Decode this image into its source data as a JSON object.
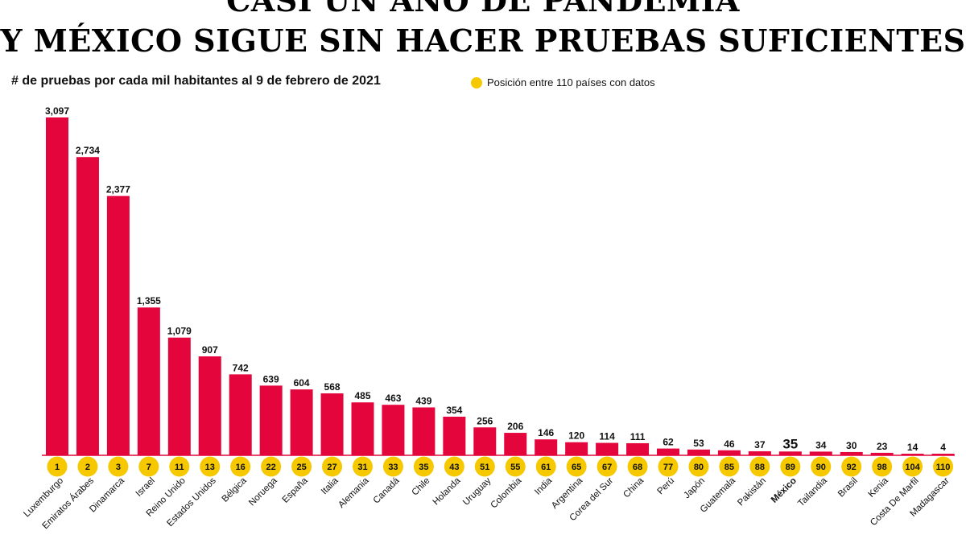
{
  "title": {
    "line1": "CASI UN AÑO DE PANDEMIA",
    "line2": "Y MÉXICO SIGUE SIN HACER PRUEBAS SUFICIENTES"
  },
  "subtitle": "# de pruebas por cada mil habitantes al 9 de febrero de 2021",
  "legend": {
    "label": "Posición entre 110 países con datos",
    "color": "#F5C800"
  },
  "colors": {
    "bar": "#E3053C",
    "badge": "#F5C800",
    "text": "#111111"
  },
  "chart_data": {
    "type": "bar",
    "title": "CASI UN AÑO DE PANDEMIA Y MÉXICO SIGUE SIN HACER PRUEBAS SUFICIENTES",
    "ylabel": "# de pruebas por cada mil habitantes al 9 de febrero de 2021",
    "ylim": [
      0,
      3097
    ],
    "highlight": "México",
    "categories": [
      "Luxemburgo",
      "Emiratos Árabes",
      "Dinamarca",
      "Israel",
      "Reino Unido",
      "Estados Unidos",
      "Bélgica",
      "Noruega",
      "España",
      "Italia",
      "Alemania",
      "Canadá",
      "Chile",
      "Holanda",
      "Uruguay",
      "Colombia",
      "India",
      "Argentina",
      "Corea del Sur",
      "China",
      "Perú",
      "Japón",
      "Guatemala",
      "Pakistán",
      "México",
      "Tailandia",
      "Brasil",
      "Kenia",
      "Costa De Marfil",
      "Madagascar"
    ],
    "values": [
      3097,
      2734,
      2377,
      1355,
      1079,
      907,
      742,
      639,
      604,
      568,
      485,
      463,
      439,
      354,
      256,
      206,
      146,
      120,
      114,
      111,
      62,
      53,
      46,
      37,
      35,
      34,
      30,
      23,
      14,
      4
    ],
    "value_labels": [
      "3,097",
      "2,734",
      "2,377",
      "1,355",
      "1,079",
      "907",
      "742",
      "639",
      "604",
      "568",
      "485",
      "463",
      "439",
      "354",
      "256",
      "206",
      "146",
      "120",
      "114",
      "111",
      "62",
      "53",
      "46",
      "37",
      "35",
      "34",
      "30",
      "23",
      "14",
      "4"
    ],
    "ranks": [
      "1",
      "2",
      "3",
      "7",
      "11",
      "13",
      "16",
      "22",
      "25",
      "27",
      "31",
      "33",
      "35",
      "43",
      "51",
      "55",
      "61",
      "65",
      "67",
      "68",
      "77",
      "80",
      "85",
      "88",
      "89",
      "90",
      "92",
      "98",
      "104",
      "110"
    ]
  }
}
